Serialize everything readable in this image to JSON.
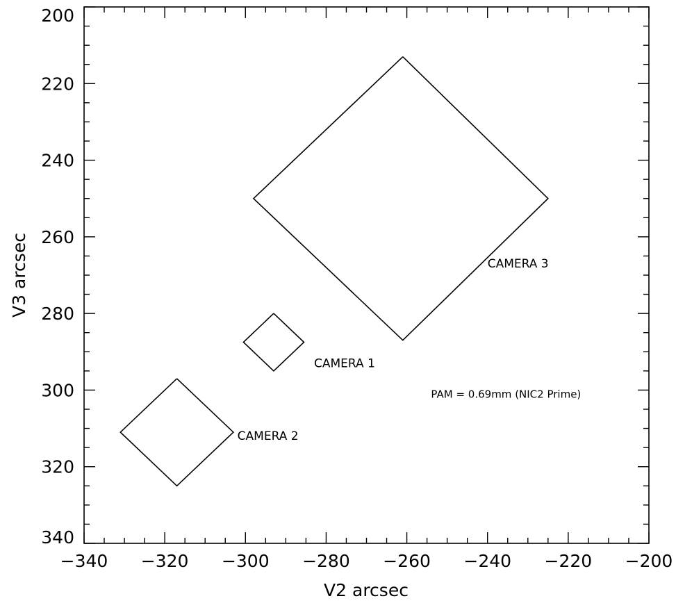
{
  "chart_data": {
    "type": "scatter",
    "title": "",
    "xlabel": "V2 arcsec",
    "ylabel": "V3 arcsec",
    "xlim": [
      -340,
      -200
    ],
    "ylim": [
      340,
      200
    ],
    "y_axis_inverted": true,
    "grid": false,
    "legend": "none",
    "xticks": [
      "-340",
      "-320",
      "-300",
      "-280",
      "-260",
      "-240",
      "-220",
      "-200"
    ],
    "yticks": [
      "200",
      "220",
      "240",
      "260",
      "280",
      "300",
      "320",
      "340"
    ],
    "series": [
      {
        "name": "CAMERA 3",
        "points": [
          [
            -261,
            213
          ],
          [
            -225,
            250
          ],
          [
            -261,
            287
          ],
          [
            -298,
            250
          ],
          [
            -261,
            213
          ]
        ]
      },
      {
        "name": "CAMERA 1",
        "points": [
          [
            -293,
            280
          ],
          [
            -285.5,
            287.5
          ],
          [
            -293,
            295
          ],
          [
            -300.5,
            287.5
          ],
          [
            -293,
            280
          ]
        ]
      },
      {
        "name": "CAMERA 2",
        "points": [
          [
            -317,
            297
          ],
          [
            -303,
            311
          ],
          [
            -317,
            325
          ],
          [
            -331,
            311
          ],
          [
            -317,
            297
          ]
        ]
      }
    ],
    "annotations": [
      {
        "text": "CAMERA 3",
        "x": -240,
        "y": 268
      },
      {
        "text": "CAMERA 1",
        "x": -283,
        "y": 294
      },
      {
        "text": "CAMERA 2",
        "x": -302,
        "y": 313
      },
      {
        "text": "PAM = 0.69mm (NIC2 Prime)",
        "x": -254,
        "y": 302
      }
    ]
  }
}
